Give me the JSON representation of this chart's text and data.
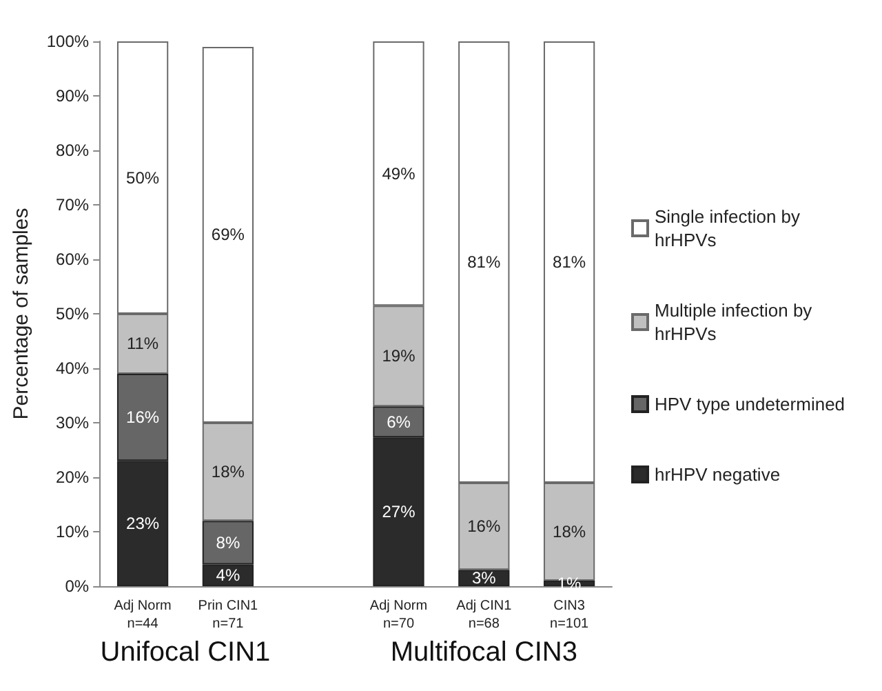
{
  "chart_data": {
    "type": "bar",
    "stacked": true,
    "ylabel": "Percentage of samples",
    "categories": [
      "Adj Norm\nn=44",
      "Prin CIN1\nn=71",
      null,
      "Adj Norm\nn=70",
      "Adj CIN1\nn=68",
      "CIN3\nn=101"
    ],
    "series": [
      {
        "name": "hrHPV negative",
        "color": "#2b2b2b",
        "values": [
          23,
          4,
          null,
          27.3,
          3,
          1
        ],
        "value_labels": [
          "23%",
          "4%",
          null,
          "27%",
          "3%",
          "1%"
        ]
      },
      {
        "name": "HPV type undetermined",
        "color": "#666666",
        "values": [
          16,
          8,
          null,
          5.7,
          null,
          null
        ],
        "value_labels": [
          "16%",
          "8%",
          null,
          "6%",
          null,
          null
        ]
      },
      {
        "name": "Multiple infection by hrHPVs",
        "color": "#c0c0c0",
        "values": [
          11,
          18,
          null,
          18.5,
          16,
          18
        ],
        "value_labels": [
          "11%",
          "18%",
          null,
          "19%",
          "16%",
          "18%"
        ]
      },
      {
        "name": "Single infection by hrHPVs",
        "color": "#ffffff",
        "values": [
          50,
          69,
          null,
          48.5,
          81,
          81
        ],
        "value_labels": [
          "50%",
          "69%",
          null,
          "49%",
          "81%",
          "81%"
        ]
      }
    ],
    "ylim": [
      0,
      100
    ],
    "yticks": [
      {
        "value": 0,
        "label": "0%"
      },
      {
        "value": 10,
        "label": "10%"
      },
      {
        "value": 20,
        "label": "20%"
      },
      {
        "value": 30,
        "label": "30%"
      },
      {
        "value": 40,
        "label": "40%"
      },
      {
        "value": 50,
        "label": "50%"
      },
      {
        "value": 60,
        "label": "60%"
      },
      {
        "value": 70,
        "label": "70%"
      },
      {
        "value": 80,
        "label": "80%"
      },
      {
        "value": 90,
        "label": "90%"
      },
      {
        "value": 100,
        "label": "100%"
      }
    ],
    "grid": false,
    "legend": "right",
    "annotations": [
      "Unifocal CIN1",
      "Multifocal CIN3"
    ]
  }
}
